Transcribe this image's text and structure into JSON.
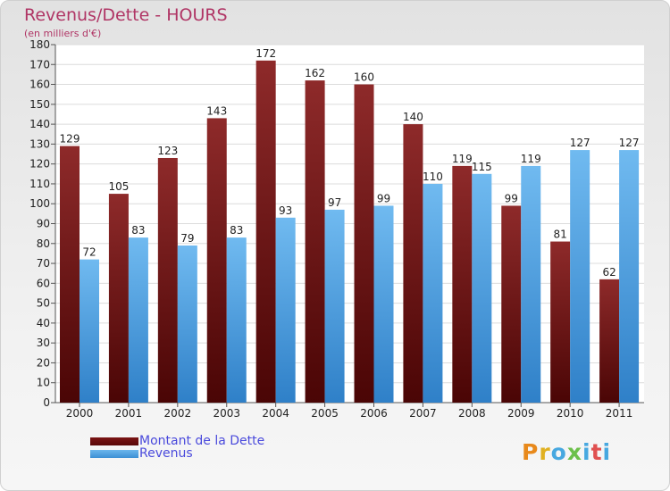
{
  "chart_data": {
    "type": "bar",
    "title": "Revenus/Dette - HOURS",
    "subtitle": "(en milliers d'€)",
    "categories": [
      "2000",
      "2001",
      "2002",
      "2003",
      "2004",
      "2005",
      "2006",
      "2007",
      "2008",
      "2009",
      "2010",
      "2011"
    ],
    "series": [
      {
        "name": "Montant de la Dette",
        "color": "#6e1010",
        "values": [
          129,
          105,
          123,
          143,
          172,
          162,
          160,
          140,
          119,
          99,
          81,
          62
        ]
      },
      {
        "name": "Revenus",
        "color": "#4aa0e0",
        "values": [
          72,
          83,
          79,
          83,
          93,
          97,
          99,
          110,
          115,
          119,
          127,
          127
        ]
      }
    ],
    "xlabel": "",
    "ylabel": "",
    "ylim": [
      0,
      180
    ],
    "ytick_step": 10,
    "grid": true,
    "legend_position": "bottom-left"
  },
  "legend": {
    "items": [
      {
        "label": "Montant de la Dette"
      },
      {
        "label": "Revenus"
      }
    ]
  },
  "logo": {
    "text": "Proxiti",
    "letter_colors": [
      "#e8891b",
      "#e0b020",
      "#47a8e0",
      "#6cc04a",
      "#47a8e0",
      "#e05050",
      "#47a8e0"
    ]
  }
}
